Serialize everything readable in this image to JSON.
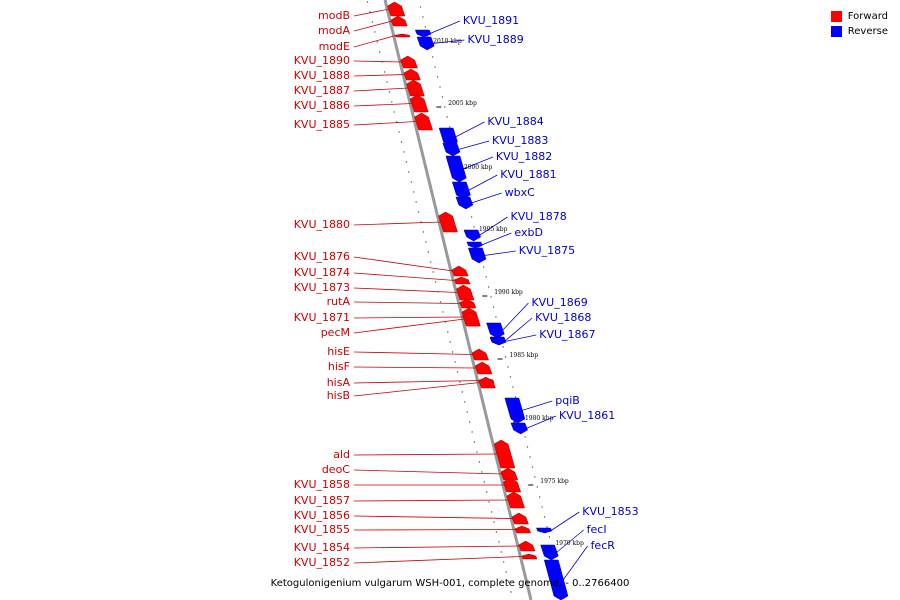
{
  "legend": [
    {
      "label": "Forward",
      "color": "#ff0000"
    },
    {
      "label": "Reverse",
      "color": "#0000ff"
    }
  ],
  "caption": "Ketogulonigenium vulgarum WSH-001, complete genome. - 0..2766400",
  "colors": {
    "forward": "#ff0000",
    "reverse": "#0000ff",
    "forward_label": "#cc0000",
    "reverse_label": "#0000cc"
  },
  "scale_labels": [
    "2010 kbp",
    "2005 kbp",
    "2000 kbp",
    "1995 kbp",
    "1990 kbp",
    "1985 kbp",
    "1980 kbp",
    "1975 kbp",
    "1970 kbp"
  ],
  "genes": {
    "forward": [
      "modB",
      "modA",
      "modE",
      "KVU_1890",
      "KVU_1888",
      "KVU_1887",
      "KVU_1886",
      "KVU_1885",
      "KVU_1880",
      "KVU_1876",
      "KVU_1874",
      "KVU_1873",
      "rutA",
      "KVU_1871",
      "pecM",
      "hisE",
      "hisF",
      "hisA",
      "hisB",
      "ald",
      "deoC",
      "KVU_1858",
      "KVU_1857",
      "KVU_1856",
      "KVU_1855",
      "KVU_1854",
      "KVU_1852"
    ],
    "reverse": [
      "KVU_1891",
      "KVU_1889",
      "KVU_1884",
      "KVU_1883",
      "KVU_1882",
      "KVU_1881",
      "wbxC",
      "KVU_1878",
      "exbD",
      "KVU_1875",
      "KVU_1869",
      "KVU_1868",
      "KVU_1867",
      "pqiB",
      "KVU_1861",
      "KVU_1853",
      "fecI",
      "fecR"
    ]
  }
}
